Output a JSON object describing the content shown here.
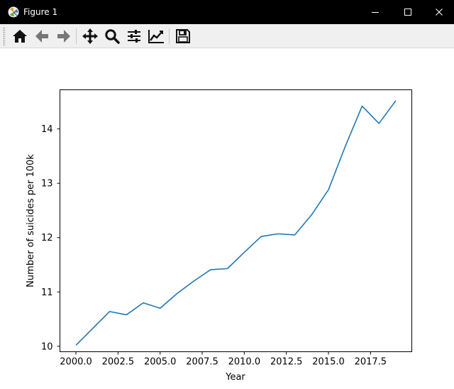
{
  "window": {
    "title": "Figure 1"
  },
  "colors": {
    "titlebar_bg": "#000000",
    "toolbar_bg": "#f0f0f0",
    "line": "#1f77b4"
  },
  "toolbar": {
    "buttons": [
      {
        "name": "home",
        "icon": "home-icon"
      },
      {
        "name": "back",
        "icon": "arrow-left-icon"
      },
      {
        "name": "forward",
        "icon": "arrow-right-icon"
      },
      {
        "name": "pan",
        "icon": "move-icon"
      },
      {
        "name": "zoom",
        "icon": "magnifier-icon"
      },
      {
        "name": "subplots",
        "icon": "sliders-icon"
      },
      {
        "name": "customize",
        "icon": "line-chart-icon"
      },
      {
        "name": "save",
        "icon": "floppy-disk-icon"
      }
    ]
  },
  "chart_data": {
    "type": "line",
    "title": "",
    "xlabel": "Year",
    "ylabel": "Number of suicides per 100k",
    "x_ticks": [
      "2000.0",
      "2002.5",
      "2005.0",
      "2007.5",
      "2010.0",
      "2012.5",
      "2015.0",
      "2017.5"
    ],
    "y_ticks": [
      "10",
      "11",
      "12",
      "13",
      "14"
    ],
    "xlim": [
      1999.05,
      2019.95
    ],
    "ylim": [
      9.9,
      14.72
    ],
    "grid": false,
    "series": [
      {
        "color": "#1f77b4",
        "x": [
          2000,
          2001,
          2002,
          2003,
          2004,
          2005,
          2006,
          2007,
          2008,
          2009,
          2010,
          2011,
          2012,
          2013,
          2014,
          2015,
          2016,
          2017,
          2018,
          2019
        ],
        "y": [
          10.02,
          10.33,
          10.64,
          10.58,
          10.8,
          10.7,
          10.97,
          11.2,
          11.41,
          11.43,
          11.73,
          12.02,
          12.07,
          12.05,
          12.42,
          12.88,
          13.68,
          14.42,
          14.1,
          14.52
        ]
      }
    ]
  }
}
